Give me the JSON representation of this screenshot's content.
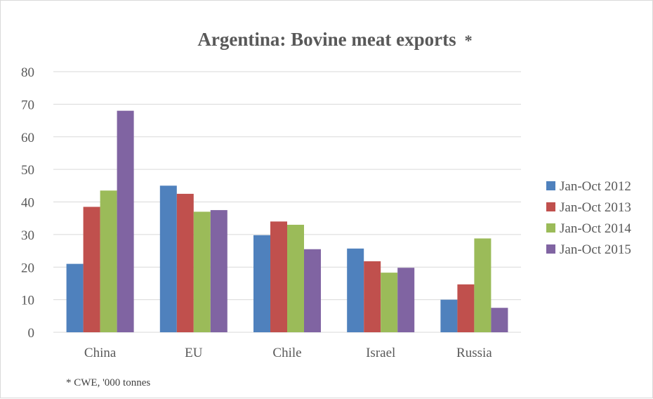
{
  "chart_data": {
    "type": "bar",
    "title": "Argentina: Bovine meat exports",
    "title_suffix": "*",
    "categories": [
      "China",
      "EU",
      "Chile",
      "Israel",
      "Russia"
    ],
    "series": [
      {
        "name": "Jan-Oct 2012",
        "color": "#4f81bd",
        "values": [
          21,
          45,
          29.8,
          25.7,
          10
        ]
      },
      {
        "name": "Jan-Oct 2013",
        "color": "#c0504d",
        "values": [
          38.5,
          42.5,
          34,
          21.8,
          14.7
        ]
      },
      {
        "name": "Jan-Oct 2014",
        "color": "#9bbb59",
        "values": [
          43.5,
          37,
          33,
          18.3,
          28.8
        ]
      },
      {
        "name": "Jan-Oct 2015",
        "color": "#8064a2",
        "values": [
          68,
          37.5,
          25.5,
          19.8,
          7.5
        ]
      }
    ],
    "y_ticks": [
      "0",
      "10",
      "20",
      "30",
      "40",
      "50",
      "60",
      "70",
      "80"
    ],
    "ylim": [
      0,
      80
    ],
    "grid": true,
    "legend_position": "right",
    "footnote": "* CWE, '000 tonnes"
  }
}
